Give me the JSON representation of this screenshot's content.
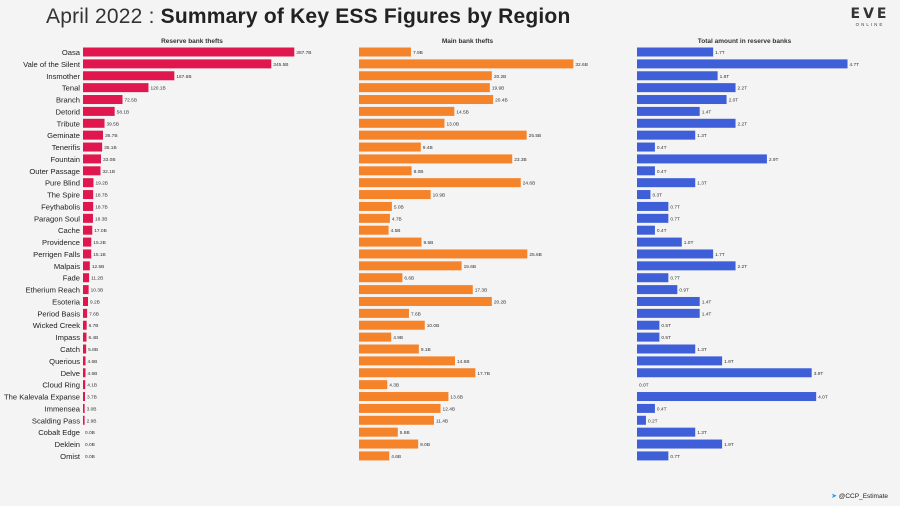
{
  "header": {
    "title_prefix": "April 2022 : ",
    "title_main": "Summary of Key ESS Figures by Region",
    "logo_main": "EVE",
    "logo_sub": "ONLINE"
  },
  "footer": {
    "credit": "@CCP_Estimate",
    "icon": "twitter-bird-icon"
  },
  "chart_data": {
    "type": "bar",
    "orientation": "horizontal",
    "grid": false,
    "categories": [
      "Oasa",
      "Vale of the Silent",
      "Insmother",
      "Tenal",
      "Branch",
      "Detorid",
      "Tribute",
      "Geminate",
      "Tenerifis",
      "Fountain",
      "Outer Passage",
      "Pure Blind",
      "The Spire",
      "Feythabolis",
      "Paragon Soul",
      "Cache",
      "Providence",
      "Perrigen Falls",
      "Malpais",
      "Fade",
      "Etherium Reach",
      "Esoteria",
      "Period Basis",
      "Wicked Creek",
      "Impass",
      "Catch",
      "Querious",
      "Delve",
      "Cloud Ring",
      "The Kalevala Expanse",
      "Immensea",
      "Scalding Pass",
      "Cobalt Edge",
      "Deklein",
      "Omist"
    ],
    "panels": [
      {
        "name": "Reserve bank thefts",
        "color": "#e0174f",
        "xlim": [
          0,
          400
        ],
        "values": [
          387.7,
          345.5,
          167.6,
          120.1,
          72.5,
          58.1,
          39.5,
          36.7,
          35.1,
          33.0,
          32.1,
          19.2,
          18.7,
          18.7,
          18.3,
          17.0,
          15.2,
          15.1,
          12.5,
          11.2,
          10.3,
          9.2,
          7.6,
          6.7,
          6.4,
          5.8,
          4.6,
          4.6,
          4.1,
          3.7,
          3.0,
          2.9,
          0.0,
          0.0,
          0.0
        ],
        "labels": [
          "387.7B",
          "345.5B",
          "167.6B",
          "120.1B",
          "72.5B",
          "58.1B",
          "39.5B",
          "36.7B",
          "35.1B",
          "33.0B",
          "32.1B",
          "19.2B",
          "18.7B",
          "18.7B",
          "18.3B",
          "17.0B",
          "15.2B",
          "15.1B",
          "12.5B",
          "11.2B",
          "10.3B",
          "9.2B",
          "7.6B",
          "6.7B",
          "6.4B",
          "5.8B",
          "4.6B",
          "4.6B",
          "4.1B",
          "3.7B",
          "3.0B",
          "2.9B",
          "0.0B",
          "0.0B",
          "0.0B"
        ]
      },
      {
        "name": "Main bank thefts",
        "color": "#f5832a",
        "xlim": [
          0,
          33
        ],
        "values": [
          7.9,
          32.6,
          20.2,
          19.9,
          20.4,
          14.5,
          13.0,
          25.5,
          9.4,
          23.3,
          8.0,
          24.6,
          10.9,
          5.0,
          4.7,
          4.5,
          9.5,
          25.6,
          15.6,
          6.6,
          17.3,
          20.2,
          7.6,
          10.0,
          4.9,
          9.1,
          14.6,
          17.7,
          4.3,
          13.6,
          12.4,
          11.4,
          5.9,
          9.0,
          4.6
        ],
        "labels": [
          "7.9B",
          "32.6B",
          "20.2B",
          "19.9B",
          "20.4B",
          "14.5B",
          "13.0B",
          "25.5B",
          "9.4B",
          "23.3B",
          "8.0B",
          "24.6B",
          "10.9B",
          "5.0B",
          "4.7B",
          "4.5B",
          "9.5B",
          "25.6B",
          "15.6B",
          "6.6B",
          "17.3B",
          "20.2B",
          "7.6B",
          "10.0B",
          "4.9B",
          "9.1B",
          "14.6B",
          "17.7B",
          "4.3B",
          "13.6B",
          "12.4B",
          "11.4B",
          "5.9B",
          "9.0B",
          "4.6B"
        ]
      },
      {
        "name": "Total amount in reserve banks",
        "color": "#3e5fd8",
        "xlim": [
          0,
          4.8
        ],
        "values": [
          1.7,
          4.7,
          1.8,
          2.2,
          2.0,
          1.4,
          2.2,
          1.3,
          0.4,
          2.9,
          0.4,
          1.3,
          0.3,
          0.7,
          0.7,
          0.4,
          1.0,
          1.7,
          2.2,
          0.7,
          0.9,
          1.4,
          1.4,
          0.5,
          0.5,
          1.3,
          1.9,
          3.9,
          0.0,
          4.0,
          0.4,
          0.2,
          1.3,
          1.9,
          0.7
        ],
        "labels": [
          "1.7T",
          "4.7T",
          "1.8T",
          "2.2T",
          "2.0T",
          "1.4T",
          "2.2T",
          "1.3T",
          "0.4T",
          "2.9T",
          "0.4T",
          "1.3T",
          "0.3T",
          "0.7T",
          "0.7T",
          "0.4T",
          "1.0T",
          "1.7T",
          "2.2T",
          "0.7T",
          "0.9T",
          "1.4T",
          "1.4T",
          "0.5T",
          "0.5T",
          "1.3T",
          "1.9T",
          "3.9T",
          "0.0T",
          "4.0T",
          "0.4T",
          "0.2T",
          "1.3T",
          "1.9T",
          "0.7T"
        ]
      }
    ]
  }
}
